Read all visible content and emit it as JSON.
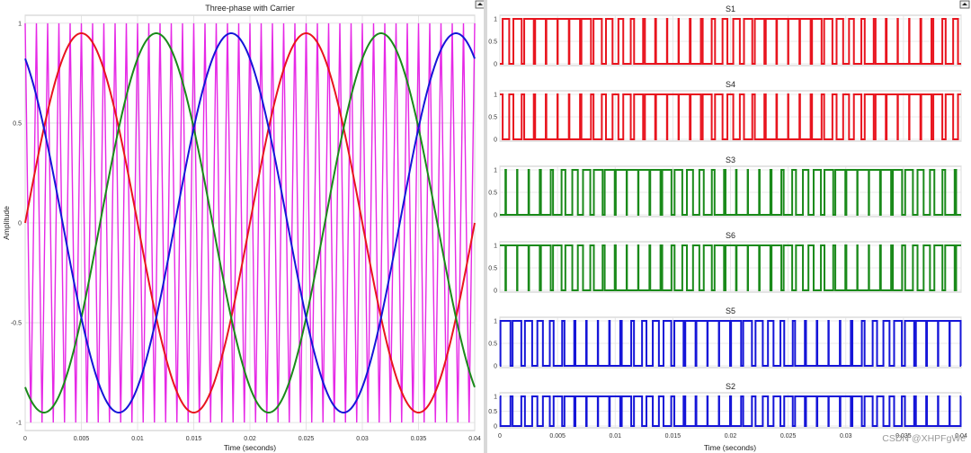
{
  "watermark": "CSDN @XHPFgWe",
  "chart_data": [
    {
      "type": "line",
      "title": "Three-phase with Carrier",
      "xlabel": "Time (seconds)",
      "ylabel": "Amplitude",
      "xlim": [
        0,
        0.04
      ],
      "ylim": [
        -1.0,
        1.0
      ],
      "grid": true,
      "x_ticks": [
        0,
        0.005,
        0.01,
        0.015,
        0.02,
        0.025,
        0.03,
        0.035,
        0.04
      ],
      "x_tick_labels": [
        "0",
        "0.005",
        "0.01",
        "0.015",
        "0.02",
        "0.025",
        "0.03",
        "0.035",
        "0.04"
      ],
      "y_ticks": [
        1,
        0.5,
        0,
        -0.5,
        -1
      ],
      "y_tick_labels": [
        "1",
        "0.5",
        "0",
        "-0.5",
        "-1"
      ],
      "series": [
        {
          "kind": "sine",
          "amplitude": 0.95,
          "frequency_hz": 50,
          "phase_deg": 0,
          "color": "#e8141e"
        },
        {
          "kind": "sine",
          "amplitude": 0.95,
          "frequency_hz": 50,
          "phase_deg": -120,
          "color": "#1a8a1a"
        },
        {
          "kind": "sine",
          "amplitude": 0.95,
          "frequency_hz": 50,
          "phase_deg": 120,
          "color": "#1515d8"
        },
        {
          "kind": "triangle",
          "amplitude": 1.0,
          "frequency_hz": 1000,
          "color": "#e628e6"
        }
      ]
    },
    {
      "type": "line",
      "title": "S1",
      "xlim": [
        0,
        0.04
      ],
      "ylim": [
        0,
        1
      ],
      "y_tick_labels": [
        "1",
        "0.5",
        "0"
      ],
      "signal": "S1",
      "color": "#e8141e"
    },
    {
      "type": "line",
      "title": "S4",
      "xlim": [
        0,
        0.04
      ],
      "ylim": [
        0,
        1
      ],
      "y_tick_labels": [
        "1",
        "0.5",
        "0"
      ],
      "signal": "S4",
      "color": "#e8141e"
    },
    {
      "type": "line",
      "title": "S3",
      "xlim": [
        0,
        0.04
      ],
      "ylim": [
        0,
        1
      ],
      "y_tick_labels": [
        "1",
        "0.5",
        "0"
      ],
      "signal": "S3",
      "color": "#1a8a1a"
    },
    {
      "type": "line",
      "title": "S6",
      "xlim": [
        0,
        0.04
      ],
      "ylim": [
        0,
        1
      ],
      "y_tick_labels": [
        "1",
        "0.5",
        "0"
      ],
      "signal": "S6",
      "color": "#1a8a1a"
    },
    {
      "type": "line",
      "title": "S5",
      "xlim": [
        0,
        0.04
      ],
      "ylim": [
        0,
        1
      ],
      "y_tick_labels": [
        "1",
        "0.5",
        "0"
      ],
      "signal": "S5",
      "color": "#1515d8"
    },
    {
      "type": "line",
      "title": "S2",
      "xlabel": "Time (seconds)",
      "xlim": [
        0,
        0.04
      ],
      "ylim": [
        0,
        1
      ],
      "y_tick_labels": [
        "1",
        "0.5",
        "0"
      ],
      "x_ticks": [
        0,
        0.005,
        0.01,
        0.015,
        0.02,
        0.025,
        0.03,
        0.035,
        0.04
      ],
      "x_tick_labels": [
        "0",
        "0.005",
        "0.01",
        "0.015",
        "0.02",
        "0.025",
        "0.03",
        "0.035",
        "0.04"
      ],
      "signal": "S2",
      "color": "#1515d8"
    }
  ]
}
